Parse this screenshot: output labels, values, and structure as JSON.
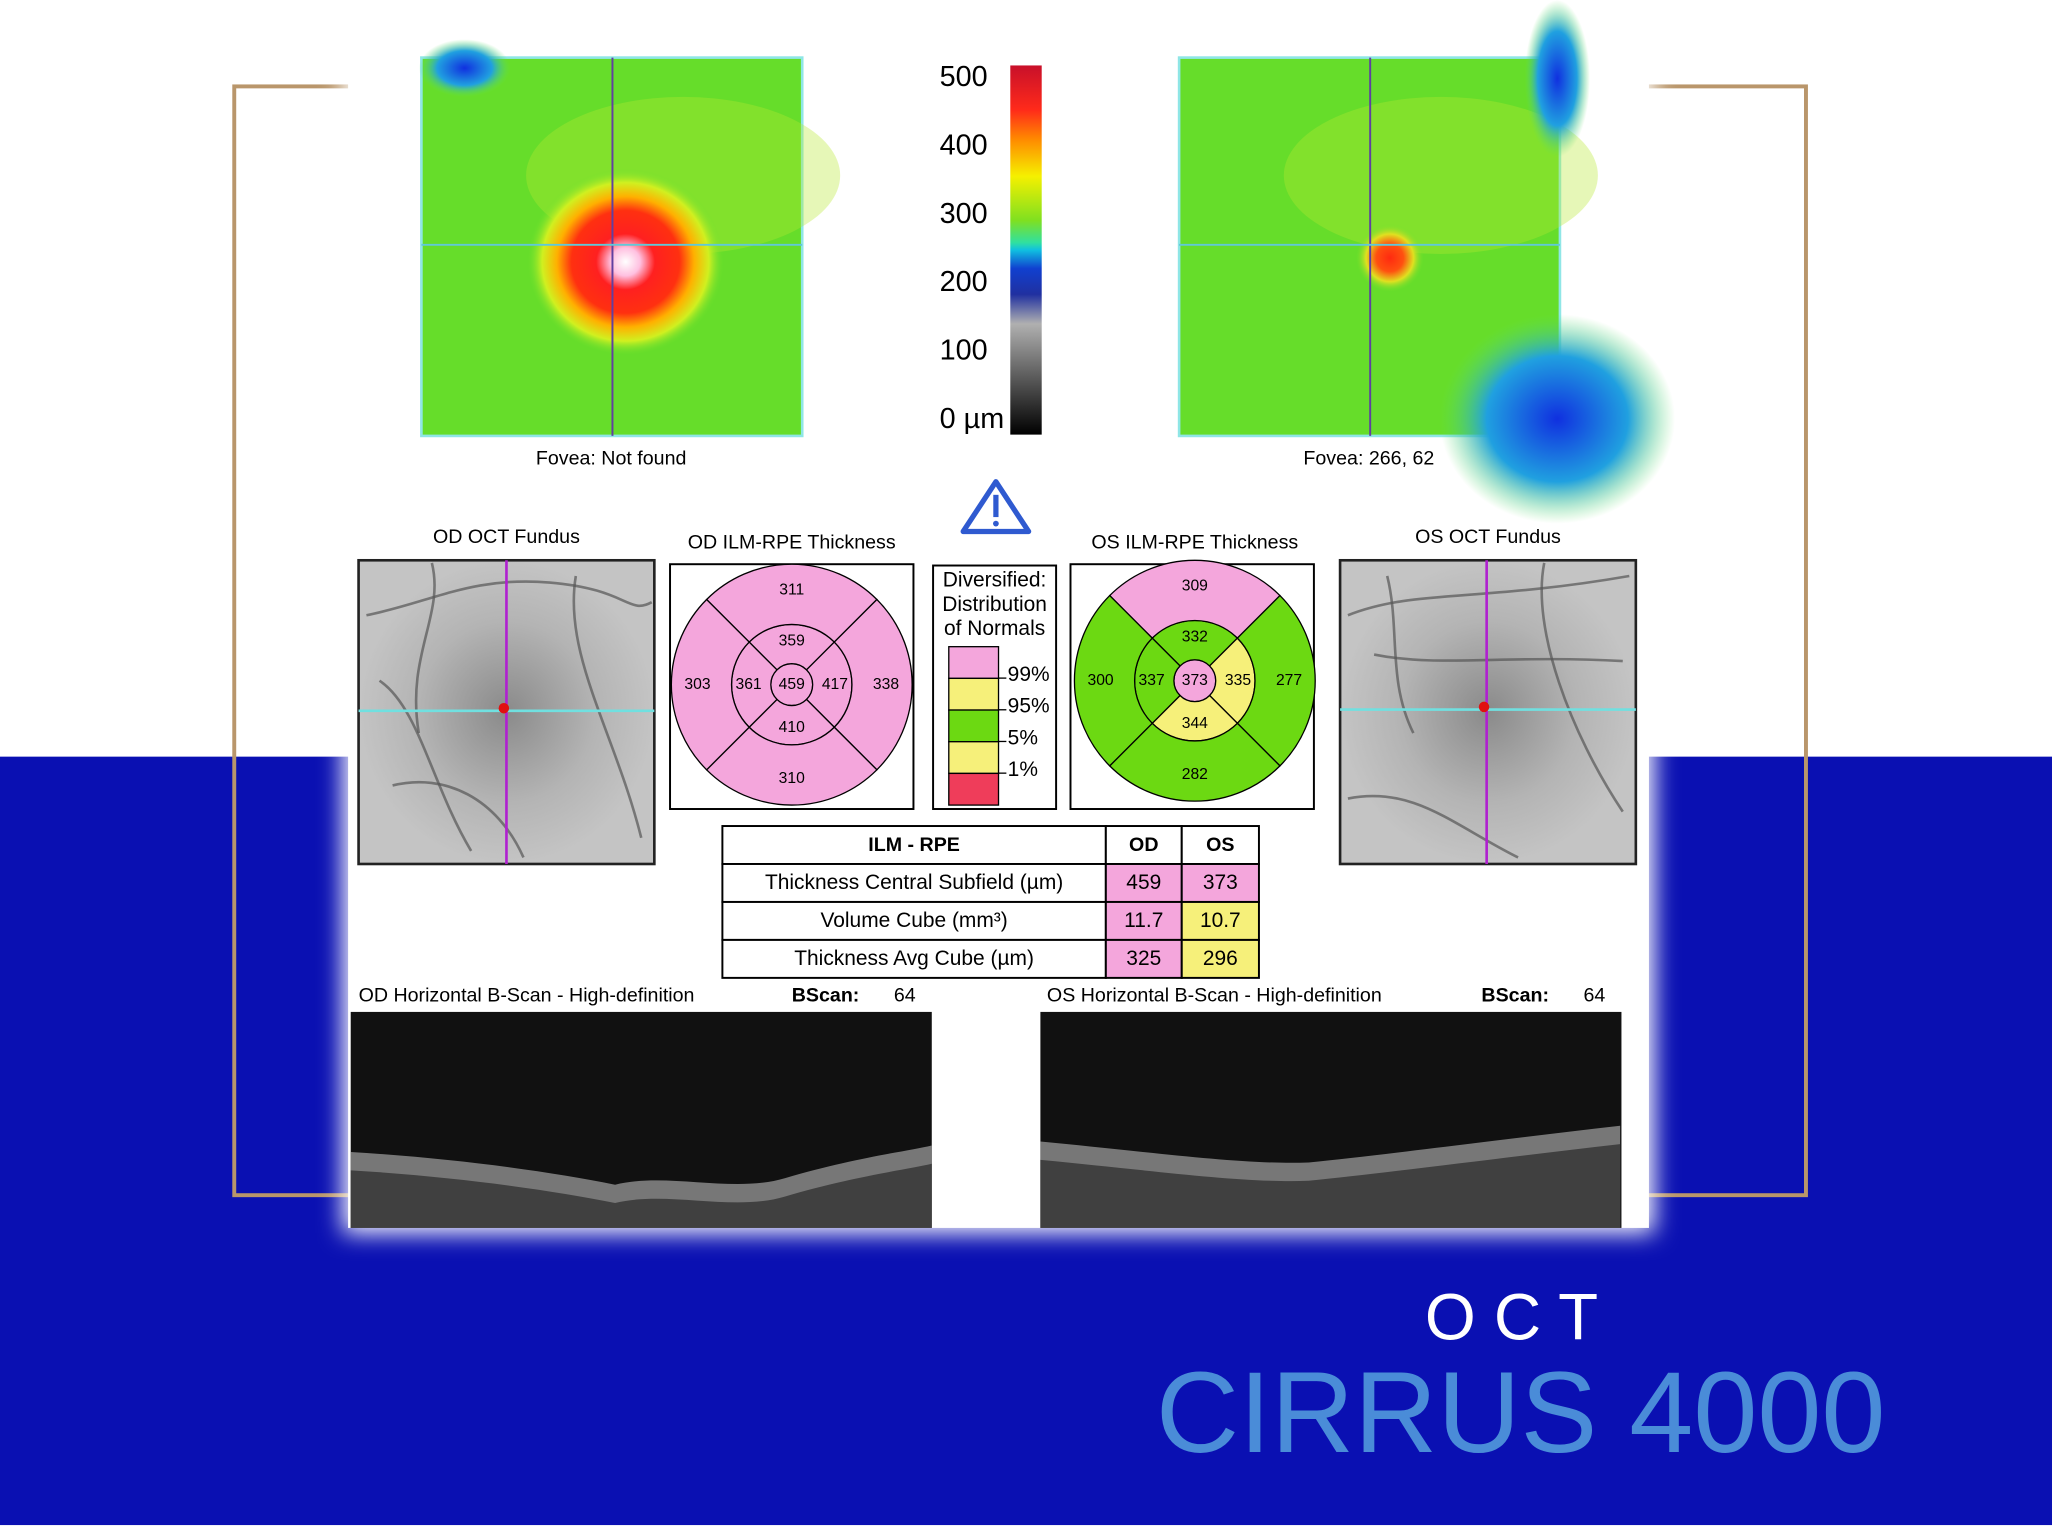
{
  "colorbar": {
    "ylim": [
      0,
      500
    ],
    "ticks": [
      500,
      400,
      300,
      200,
      100,
      {
        "value": 0,
        "label": "0 µm"
      }
    ]
  },
  "maps": [
    {
      "fovea": "Fovea: Not found"
    },
    {
      "fovea": "Fovea: 266, 62"
    }
  ],
  "fundus": [
    {
      "title": "OD OCT Fundus"
    },
    {
      "title": "OS OCT Fundus"
    }
  ],
  "thickness": [
    {
      "title": "OD ILM-RPE Thickness",
      "sectors": [
        {
          "value": 459,
          "color": "#f4a6dc"
        },
        {
          "value": 359,
          "color": "#f4a6dc"
        },
        {
          "value": 417,
          "color": "#f4a6dc"
        },
        {
          "value": 410,
          "color": "#f4a6dc"
        },
        {
          "value": 361,
          "color": "#f4a6dc"
        },
        {
          "value": 311,
          "color": "#f4a6dc"
        },
        {
          "value": 338,
          "color": "#f4a6dc"
        },
        {
          "value": 310,
          "color": "#f4a6dc"
        },
        {
          "value": 303,
          "color": "#f4a6dc"
        }
      ]
    },
    {
      "title": "OS ILM-RPE Thickness",
      "sectors": [
        {
          "value": 373,
          "color": "#f4a6dc"
        },
        {
          "value": 332,
          "color": "#6cd912"
        },
        {
          "value": 335,
          "color": "#f6f07a"
        },
        {
          "value": 344,
          "color": "#f6f07a"
        },
        {
          "value": 337,
          "color": "#6cd912"
        },
        {
          "value": 309,
          "color": "#f4a6dc"
        },
        {
          "value": 277,
          "color": "#6cd912"
        },
        {
          "value": 282,
          "color": "#6cd912"
        },
        {
          "value": 300,
          "color": "#6cd912"
        }
      ]
    }
  ],
  "legend": {
    "title": [
      "Diversified:",
      "Distribution",
      "of Normals"
    ],
    "colors": [
      "#f4a6dc",
      "#f6f07a",
      "#6cd912",
      "#f6f07a",
      "#ef3d5a"
    ],
    "labels": [
      "99%",
      "95%",
      "5%",
      "1%"
    ]
  },
  "table": {
    "header": [
      "ILM - RPE",
      "OD",
      "OS"
    ],
    "rows": [
      [
        "Thickness Central Subfield (µm)",
        459,
        373
      ],
      [
        "Volume Cube (mm³)",
        11.7,
        10.7
      ],
      [
        "Thickness Avg Cube (µm)",
        325,
        296
      ]
    ],
    "cell_colors": [
      [
        "#f4a6dc",
        "#f4a6dc"
      ],
      [
        "#f4a6dc",
        "#f6f07a"
      ],
      [
        "#f4a6dc",
        "#f6f07a"
      ]
    ]
  },
  "bscans": [
    {
      "title": "OD Horizontal B-Scan - High-definition",
      "label": "BScan:",
      "number": 64
    },
    {
      "title": "OS Horizontal B-Scan - High-definition",
      "label": "BScan:",
      "number": 64
    }
  ],
  "brand": {
    "line1": "O C T",
    "line2": "CIRRUS 4000"
  }
}
